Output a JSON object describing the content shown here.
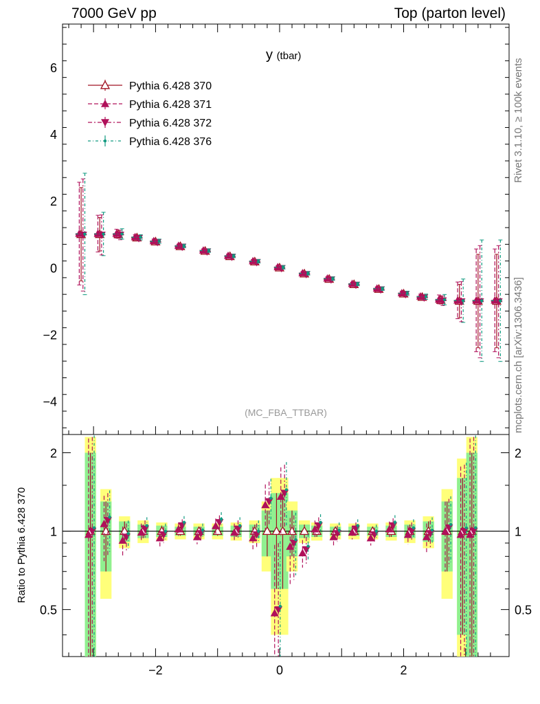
{
  "header": {
    "left": "7000 GeV pp",
    "right": "Top (parton level)"
  },
  "side": {
    "top": "Rivet 3.1.10, ≥ 100k events",
    "bottom": "mcplots.cern.ch [arXiv:1306.3436]"
  },
  "chart_data": {
    "type": "scatter",
    "title": "y",
    "title_sub": "(tbar)",
    "watermark": "(MC_FBA_TTBAR)",
    "xlim": [
      -3.5,
      3.7
    ],
    "main_ylim": [
      -5.0,
      7.3
    ],
    "main_yticks": [
      -4,
      -2,
      0,
      2,
      4,
      6
    ],
    "ratio_ylim": [
      0.33,
      2.35
    ],
    "ratio_yticks": [
      0.5,
      1,
      2
    ],
    "ratio_ylabel": "Ratio to Pythia 6.428 370",
    "xticks": [
      -2,
      0,
      2
    ],
    "legend_position": "top-left",
    "series": [
      {
        "name": "Pythia 6.428 370",
        "marker": "triangle-open",
        "dash": "",
        "color": "#a01020"
      },
      {
        "name": "Pythia 6.428 371",
        "marker": "triangle-up",
        "dash": "6,3",
        "color": "#b0105a"
      },
      {
        "name": "Pythia 6.428 372",
        "marker": "triangle-down",
        "dash": "6,3,2,3",
        "color": "#b0105a"
      },
      {
        "name": "Pythia 6.428 376",
        "marker": "dot",
        "dash": "4,3,1,3",
        "color": "#109a80"
      }
    ],
    "reference": {
      "x": [
        -3.2,
        -2.9,
        -2.6,
        -2.3,
        -2.0,
        -1.6,
        -1.2,
        -0.8,
        -0.4,
        0.0,
        0.4,
        0.8,
        1.2,
        1.6,
        2.0,
        2.3,
        2.6,
        2.9,
        3.2,
        3.5
      ],
      "y": [
        1.0,
        1.0,
        1.0,
        0.9,
        0.78,
        0.64,
        0.5,
        0.34,
        0.18,
        0.0,
        -0.18,
        -0.34,
        -0.5,
        -0.64,
        -0.78,
        -0.88,
        -0.97,
        -1.0,
        -1.0,
        -1.0
      ],
      "err": [
        1.4,
        0.5,
        0.12,
        0.06,
        0.05,
        0.04,
        0.04,
        0.04,
        0.04,
        0.04,
        0.04,
        0.04,
        0.04,
        0.04,
        0.05,
        0.06,
        0.12,
        0.5,
        1.4,
        1.4
      ]
    },
    "ratio": {
      "x": [
        -3.05,
        -2.8,
        -2.5,
        -2.2,
        -1.9,
        -1.6,
        -1.3,
        -1.0,
        -0.7,
        -0.4,
        -0.2,
        -0.05,
        0.05,
        0.2,
        0.4,
        0.6,
        0.9,
        1.2,
        1.5,
        1.8,
        2.1,
        2.4,
        2.7,
        2.95,
        3.1
      ],
      "y": [
        1.0,
        1.1,
        0.95,
        1.02,
        0.97,
        1.05,
        0.98,
        1.08,
        1.02,
        0.97,
        1.3,
        0.5,
        1.4,
        0.9,
        0.85,
        1.05,
        0.98,
        1.02,
        0.97,
        1.05,
        1.0,
        0.98,
        1.03,
        1.0,
        1.0
      ],
      "err": [
        1.3,
        0.3,
        0.12,
        0.08,
        0.07,
        0.06,
        0.06,
        0.07,
        0.08,
        0.1,
        0.25,
        0.4,
        0.4,
        0.25,
        0.1,
        0.08,
        0.07,
        0.06,
        0.06,
        0.07,
        0.08,
        0.12,
        0.3,
        0.8,
        1.3
      ],
      "band_yellow": [
        1.3,
        0.45,
        0.14,
        0.1,
        0.08,
        0.07,
        0.07,
        0.07,
        0.08,
        0.1,
        0.3,
        0.6,
        0.6,
        0.3,
        0.1,
        0.08,
        0.07,
        0.07,
        0.07,
        0.08,
        0.1,
        0.14,
        0.45,
        0.9,
        1.3
      ],
      "band_green": [
        1.0,
        0.3,
        0.09,
        0.06,
        0.05,
        0.04,
        0.04,
        0.04,
        0.05,
        0.06,
        0.2,
        0.4,
        0.4,
        0.2,
        0.06,
        0.05,
        0.04,
        0.04,
        0.04,
        0.05,
        0.06,
        0.09,
        0.3,
        0.6,
        1.0
      ]
    }
  }
}
